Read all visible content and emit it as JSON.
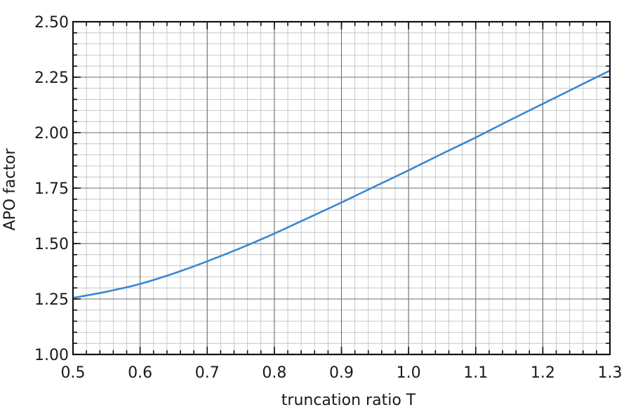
{
  "chart_data": {
    "type": "line",
    "title": "",
    "xlabel": "truncation ratio T",
    "ylabel": "APO factor",
    "xlim": [
      0.5,
      1.3
    ],
    "ylim": [
      1.0,
      2.5
    ],
    "x_ticks": [
      0.5,
      0.6,
      0.7,
      0.8,
      0.9,
      1.0,
      1.1,
      1.2,
      1.3
    ],
    "x_tick_labels": [
      "0.5",
      "0.6",
      "0.7",
      "0.8",
      "0.9",
      "1.0",
      "1.1",
      "1.2",
      "1.3"
    ],
    "y_ticks": [
      1.0,
      1.25,
      1.5,
      1.75,
      2.0,
      2.25,
      2.5
    ],
    "y_tick_labels": [
      "1.00",
      "1.25",
      "1.50",
      "1.75",
      "2.00",
      "2.25",
      "2.50"
    ],
    "x_minor_step": 0.02,
    "y_minor_step": 0.05,
    "grid": true,
    "line_color": "#3a87d6",
    "series": [
      {
        "x": [
          0.5,
          0.55,
          0.6,
          0.65,
          0.7,
          0.75,
          0.8,
          0.85,
          0.9,
          0.95,
          1.0,
          1.05,
          1.1,
          1.15,
          1.2,
          1.25,
          1.3
        ],
        "values": [
          1.255,
          1.283,
          1.318,
          1.365,
          1.42,
          1.48,
          1.545,
          1.615,
          1.685,
          1.758,
          1.83,
          1.905,
          1.978,
          2.055,
          2.13,
          2.205,
          2.28
        ]
      }
    ]
  }
}
